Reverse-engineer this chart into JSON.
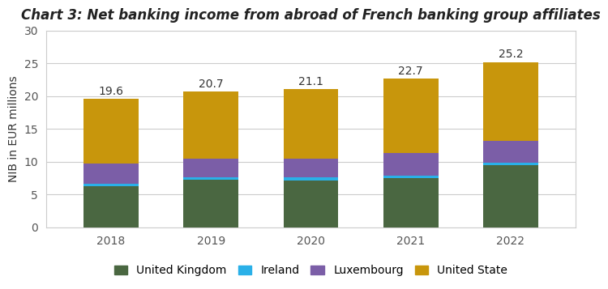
{
  "title": "Chart 3: Net banking income from abroad of French banking group affiliates",
  "years": [
    2018,
    2019,
    2020,
    2021,
    2022
  ],
  "totals": [
    19.6,
    20.7,
    21.1,
    22.7,
    25.2
  ],
  "series": {
    "United Kingdom": [
      6.3,
      7.3,
      7.2,
      7.5,
      9.5
    ],
    "Ireland": [
      0.4,
      0.4,
      0.4,
      0.4,
      0.4
    ],
    "Luxembourg": [
      3.1,
      2.8,
      2.9,
      3.5,
      3.3
    ],
    "United State": [
      9.8,
      10.2,
      10.6,
      11.3,
      12.0
    ]
  },
  "colors": {
    "United Kingdom": "#4a6741",
    "Ireland": "#2ab0e8",
    "Luxembourg": "#7b5ea7",
    "United State": "#c8960c"
  },
  "ylabel": "NIB in EUR millions",
  "ylim": [
    0,
    30
  ],
  "yticks": [
    0,
    5,
    10,
    15,
    20,
    25,
    30
  ],
  "bar_width": 0.55,
  "background_color": "#ffffff",
  "plot_bg_color": "#ffffff",
  "title_fontsize": 12,
  "label_fontsize": 10,
  "tick_fontsize": 10,
  "legend_fontsize": 10,
  "annotation_fontsize": 10
}
